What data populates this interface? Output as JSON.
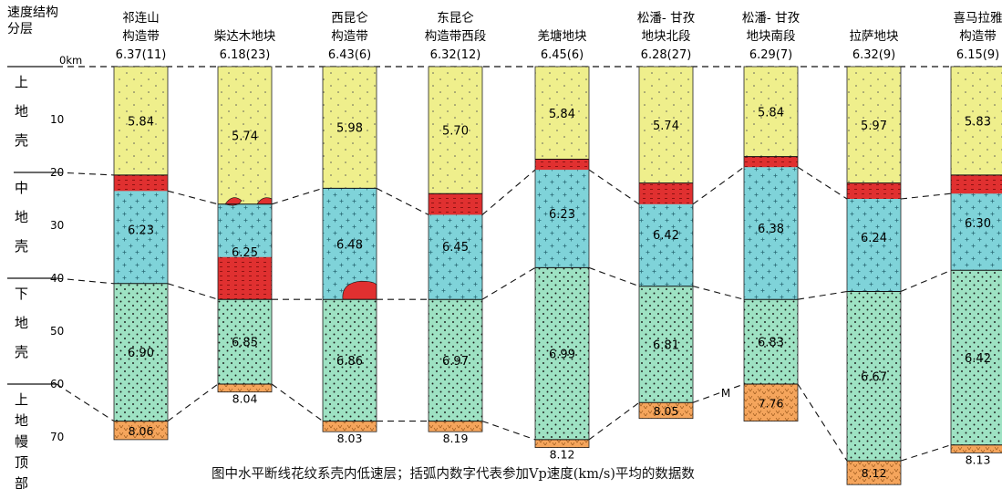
{
  "legend_header": [
    "速度结构",
    "分层"
  ],
  "layer_names": [
    [
      "上",
      "地",
      "壳"
    ],
    [
      "中",
      "地",
      "壳"
    ],
    [
      "下",
      "地",
      "壳"
    ],
    [
      "上",
      "地",
      "幔",
      "顶",
      "部"
    ]
  ],
  "depth_axis": {
    "ticks": [
      {
        "depth": 0,
        "label": "0km"
      },
      {
        "depth": 10,
        "label": "10"
      },
      {
        "depth": 20,
        "label": "20"
      },
      {
        "depth": 30,
        "label": "30"
      },
      {
        "depth": 40,
        "label": "40"
      },
      {
        "depth": 50,
        "label": "50"
      },
      {
        "depth": 60,
        "label": "60"
      },
      {
        "depth": 70,
        "label": "70"
      }
    ]
  },
  "moho_label": "M",
  "caption": "图中水平断线花纹系壳内低速层；括弧内数字代表参加Vp速度(km/s)平均的数据数",
  "colors": {
    "upper": "#efef8c",
    "middle": "#7fd3d9",
    "lower": "#9ee2c3",
    "mantle": "#f5a55c",
    "lvz": "#e03030"
  },
  "columns": [
    {
      "title": [
        "祁连山",
        "构造带"
      ],
      "vp": "6.37(11)",
      "upper_base": 20.5,
      "lvz_top": 20.5,
      "lvz_base": 23.5,
      "mid_base": 41,
      "moho": 67,
      "bottom": 70.5,
      "labels": {
        "upper": "5.84",
        "middle": "6.23",
        "lower": "6.90",
        "mantle": "8.06"
      }
    },
    {
      "title": [
        "柴达木地块"
      ],
      "vp": "6.18(23)",
      "upper_base": 26,
      "lvz_top": 36,
      "lvz_base": 44,
      "mid_base": 44,
      "moho": 60,
      "bottom": 61.5,
      "lens": "top",
      "labels": {
        "upper": "5.74",
        "middle": "6.25",
        "lower": "6.85",
        "mantle": "8.04"
      }
    },
    {
      "title": [
        "西昆仑",
        "构造带"
      ],
      "vp": "6.43(6)",
      "upper_base": 23,
      "mid_base": 44,
      "moho": 67,
      "bottom": 69,
      "lens": "bottom",
      "labels": {
        "upper": "5.98",
        "middle": "6.48",
        "lower": "6.86",
        "mantle": "8.03"
      }
    },
    {
      "title": [
        "东昆仑",
        "构造带西段"
      ],
      "vp": "6.32(12)",
      "upper_base": 24,
      "lvz_top": 24,
      "lvz_base": 28,
      "mid_base": 44,
      "moho": 67,
      "bottom": 69,
      "labels": {
        "upper": "5.70",
        "middle": "6.45",
        "lower": "6.97",
        "mantle": "8.19"
      }
    },
    {
      "title": [
        "羌塘地块"
      ],
      "vp": "6.45(6)",
      "upper_base": 17.5,
      "lvz_top": 17.5,
      "lvz_base": 19.5,
      "mid_base": 38,
      "moho": 70.5,
      "bottom": 72,
      "labels": {
        "upper": "5.84",
        "middle": "6.23",
        "lower": "6.99",
        "mantle": "8.12"
      }
    },
    {
      "title": [
        "松潘- 甘孜",
        "地块北段"
      ],
      "vp": "6.28(27)",
      "upper_base": 22,
      "lvz_top": 22,
      "lvz_base": 26,
      "mid_base": 41.5,
      "moho": 63.5,
      "bottom": 66.5,
      "labels": {
        "upper": "5.74",
        "middle": "6.42",
        "lower": "6.81",
        "mantle": "8.05"
      }
    },
    {
      "title": [
        "松潘- 甘孜",
        "地块南段"
      ],
      "vp": "6.29(7)",
      "upper_base": 17,
      "lvz_top": 17,
      "lvz_base": 19,
      "mid_base": 44,
      "moho": 60,
      "bottom": 67,
      "labels": {
        "upper": "5.84",
        "middle": "6.38",
        "lower": "6.83",
        "mantle": "7.76"
      }
    },
    {
      "title": [
        "拉萨地块"
      ],
      "vp": "6.32(9)",
      "upper_base": 22,
      "lvz_top": 22,
      "lvz_base": 25,
      "mid_base": 42.5,
      "moho": 74.5,
      "bottom": 79,
      "labels": {
        "upper": "5.97",
        "middle": "6.24",
        "lower": "6.67",
        "mantle": "8.12"
      }
    },
    {
      "title": [
        "喜马拉雅",
        "构造带"
      ],
      "vp": "6.15(9)",
      "upper_base": 20.5,
      "lvz_top": 20.5,
      "lvz_base": 24,
      "mid_base": 38.5,
      "moho": 71.5,
      "bottom": 73,
      "labels": {
        "upper": "5.83",
        "middle": "6.30",
        "lower": "6.42",
        "mantle": "8.13"
      }
    }
  ]
}
